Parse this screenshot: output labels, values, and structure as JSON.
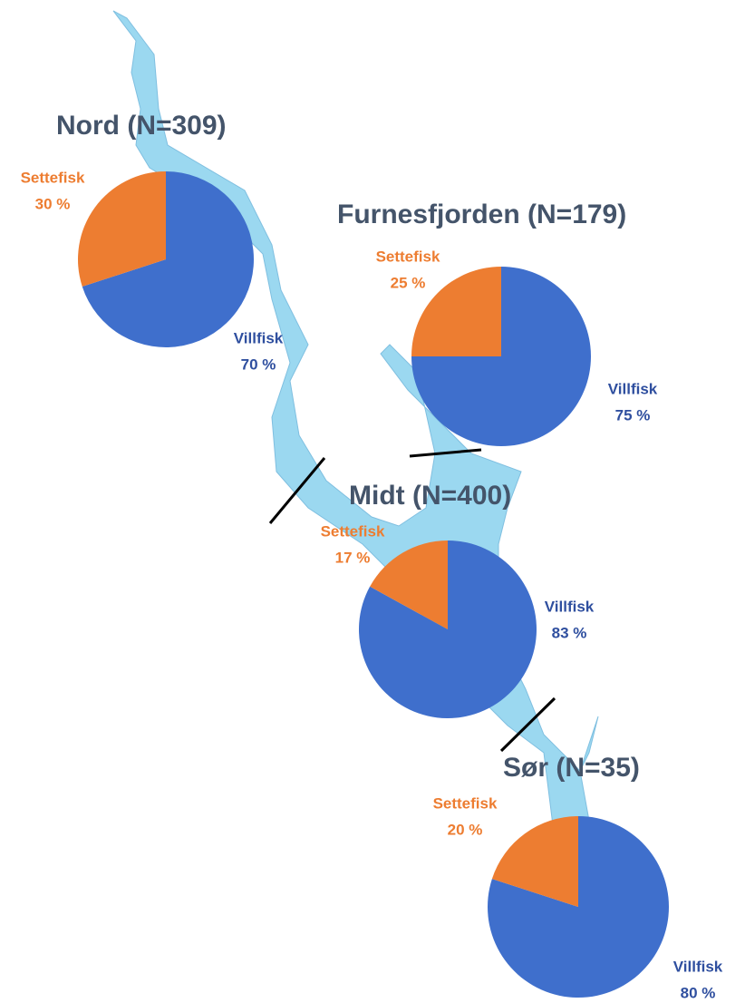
{
  "chart_data": [
    {
      "type": "pie",
      "title": "Nord (N=309)",
      "categories": [
        "Villfisk",
        "Settefisk"
      ],
      "values": [
        70,
        30
      ],
      "value_labels": [
        "70 %",
        "30 %"
      ],
      "colors": [
        "#3f6fcc",
        "#ed7d31"
      ]
    },
    {
      "type": "pie",
      "title": "Furnesfjorden (N=179)",
      "categories": [
        "Villfisk",
        "Settefisk"
      ],
      "values": [
        75,
        25
      ],
      "value_labels": [
        "75 %",
        "25 %"
      ],
      "colors": [
        "#3f6fcc",
        "#ed7d31"
      ]
    },
    {
      "type": "pie",
      "title": "Midt (N=400)",
      "categories": [
        "Villfisk",
        "Settefisk"
      ],
      "values": [
        83,
        17
      ],
      "value_labels": [
        "83 %",
        "17 %"
      ],
      "colors": [
        "#3f6fcc",
        "#ed7d31"
      ]
    },
    {
      "type": "pie",
      "title": "Sør (N=35)",
      "categories": [
        "Villfisk",
        "Settefisk"
      ],
      "values": [
        80,
        20
      ],
      "value_labels": [
        "80 %",
        "20 %"
      ],
      "colors": [
        "#3f6fcc",
        "#ed7d31"
      ]
    }
  ]
}
